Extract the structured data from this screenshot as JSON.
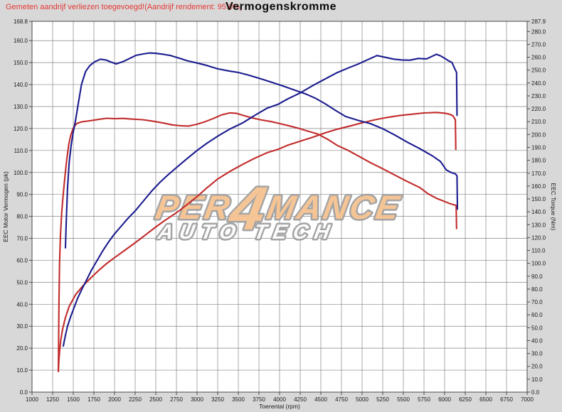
{
  "header": {
    "note": "Gemeten aandrijf verliezen toegevoegd!(Aandrijf rendement: 95.0%)",
    "title": "Vermogenskromme"
  },
  "colors": {
    "background": "#d8d8d8",
    "plot_background": "#ffffff",
    "grid": "#858585",
    "border": "#4a4a4a",
    "blue_series": "#1b1b8e",
    "red_series": "#c22b2b",
    "note_text": "#e53935",
    "axis_text": "#1a1a1a"
  },
  "watermark": {
    "line1": "PER4MANCE",
    "line2": "AUTO TECH",
    "fill": "#f6c18f",
    "line2_fill": "#fcfcfc",
    "outline": "#9e9e9e"
  },
  "chart_data": {
    "type": "line",
    "title": "Vermogenskromme",
    "grid": "on",
    "legend": "none",
    "x_axis": {
      "label": "Toerental (rpm)",
      "min": 1000,
      "max": 7000,
      "ticks": [
        1000,
        1250,
        1500,
        1750,
        2000,
        2250,
        2500,
        2750,
        3000,
        3250,
        3500,
        3750,
        4000,
        4250,
        4500,
        4750,
        5000,
        5250,
        5500,
        5750,
        6000,
        6250,
        6500,
        6750,
        7000
      ]
    },
    "y_left_axis": {
      "label": "EEC Motor Vermogen (pk)",
      "min": 0,
      "max": 168.8,
      "ticks": [
        0,
        10,
        20,
        30,
        40,
        50,
        60,
        70,
        80,
        90,
        100,
        110,
        120,
        130,
        140,
        150,
        160,
        168.8
      ]
    },
    "y_right_axis": {
      "label": "EEC Torque (Nm)",
      "min": 0,
      "max": 287.9,
      "ticks": [
        0,
        10,
        20,
        30,
        40,
        50,
        60,
        70,
        80,
        90,
        100,
        110,
        120,
        130,
        140,
        150,
        160,
        170,
        180,
        190,
        200,
        210,
        220,
        230,
        240,
        250,
        260,
        270,
        280,
        287.9
      ]
    },
    "series": [
      {
        "name": "torque-red",
        "axis": "right",
        "color": "#c22b2b",
        "points": [
          [
            1319,
            16
          ],
          [
            1322,
            40
          ],
          [
            1327,
            70
          ],
          [
            1334,
            100
          ],
          [
            1345,
            122
          ],
          [
            1360,
            140
          ],
          [
            1380,
            155
          ],
          [
            1400,
            168
          ],
          [
            1420,
            180
          ],
          [
            1445,
            192
          ],
          [
            1470,
            199.5
          ],
          [
            1500,
            205
          ],
          [
            1540,
            208.5
          ],
          [
            1600,
            209.8
          ],
          [
            1700,
            210.7
          ],
          [
            1800,
            211.7
          ],
          [
            1905,
            212.6
          ],
          [
            2000,
            212.3
          ],
          [
            2100,
            212.5
          ],
          [
            2200,
            212
          ],
          [
            2340,
            211.5
          ],
          [
            2450,
            210.5
          ],
          [
            2570,
            209.2
          ],
          [
            2700,
            207.5
          ],
          [
            2800,
            206.8
          ],
          [
            2900,
            206.6
          ],
          [
            3000,
            208
          ],
          [
            3100,
            210
          ],
          [
            3200,
            212.5
          ],
          [
            3300,
            215.3
          ],
          [
            3400,
            216.8
          ],
          [
            3480,
            216.4
          ],
          [
            3560,
            214.8
          ],
          [
            3660,
            213
          ],
          [
            3780,
            211.3
          ],
          [
            3900,
            210
          ],
          [
            3980,
            208.8
          ],
          [
            4100,
            207
          ],
          [
            4220,
            205
          ],
          [
            4340,
            202.7
          ],
          [
            4460,
            200.4
          ],
          [
            4580,
            196.4
          ],
          [
            4700,
            191.5
          ],
          [
            4820,
            188
          ],
          [
            4950,
            183.5
          ],
          [
            5100,
            178.2
          ],
          [
            5250,
            173.4
          ],
          [
            5400,
            168.4
          ],
          [
            5550,
            163.4
          ],
          [
            5700,
            158.8
          ],
          [
            5800,
            154
          ],
          [
            5900,
            150.5
          ],
          [
            6000,
            148
          ],
          [
            6070,
            146.2
          ],
          [
            6110,
            145.5
          ],
          [
            6140,
            145
          ],
          [
            6145,
            127
          ]
        ]
      },
      {
        "name": "vermogen-red",
        "axis": "left",
        "color": "#c22b2b",
        "points": [
          [
            1319,
            9.4
          ],
          [
            1325,
            14
          ],
          [
            1335,
            19
          ],
          [
            1350,
            24
          ],
          [
            1370,
            28.5
          ],
          [
            1405,
            34
          ],
          [
            1450,
            39
          ],
          [
            1530,
            44.5
          ],
          [
            1620,
            48.5
          ],
          [
            1730,
            52.6
          ],
          [
            1820,
            55.8
          ],
          [
            1900,
            58.4
          ],
          [
            2000,
            61.2
          ],
          [
            2100,
            63.9
          ],
          [
            2200,
            66.6
          ],
          [
            2300,
            69.4
          ],
          [
            2400,
            72.3
          ],
          [
            2500,
            75.2
          ],
          [
            2600,
            77.9
          ],
          [
            2700,
            80.4
          ],
          [
            2800,
            83
          ],
          [
            2900,
            86
          ],
          [
            3000,
            89
          ],
          [
            3120,
            93
          ],
          [
            3250,
            97
          ],
          [
            3400,
            100.5
          ],
          [
            3550,
            103.6
          ],
          [
            3700,
            106.5
          ],
          [
            3850,
            109
          ],
          [
            3980,
            110.5
          ],
          [
            4100,
            112.4
          ],
          [
            4250,
            114.2
          ],
          [
            4400,
            116
          ],
          [
            4550,
            118
          ],
          [
            4700,
            119.7
          ],
          [
            4840,
            121
          ],
          [
            5000,
            122.6
          ],
          [
            5160,
            124
          ],
          [
            5300,
            125
          ],
          [
            5450,
            125.9
          ],
          [
            5600,
            126.5
          ],
          [
            5750,
            127.1
          ],
          [
            5900,
            127.3
          ],
          [
            6000,
            127
          ],
          [
            6060,
            126.5
          ],
          [
            6100,
            125.8
          ],
          [
            6130,
            124
          ],
          [
            6135,
            110.5
          ]
        ]
      },
      {
        "name": "torque-blue",
        "axis": "right",
        "color": "#1b1b8e",
        "points": [
          [
            1405,
            112
          ],
          [
            1415,
            132
          ],
          [
            1430,
            158
          ],
          [
            1450,
            178
          ],
          [
            1475,
            192
          ],
          [
            1500,
            202
          ],
          [
            1530,
            212
          ],
          [
            1560,
            224
          ],
          [
            1600,
            239
          ],
          [
            1650,
            249
          ],
          [
            1700,
            253.5
          ],
          [
            1760,
            256.5
          ],
          [
            1830,
            258.5
          ],
          [
            1900,
            257.8
          ],
          [
            1960,
            256.2
          ],
          [
            2020,
            254.8
          ],
          [
            2100,
            256.5
          ],
          [
            2180,
            259
          ],
          [
            2260,
            261.5
          ],
          [
            2340,
            262.5
          ],
          [
            2420,
            263.3
          ],
          [
            2500,
            263
          ],
          [
            2600,
            262.2
          ],
          [
            2680,
            261.3
          ],
          [
            2780,
            259.4
          ],
          [
            2880,
            257.3
          ],
          [
            3000,
            255.5
          ],
          [
            3120,
            253.6
          ],
          [
            3250,
            251
          ],
          [
            3380,
            249.4
          ],
          [
            3500,
            248.2
          ],
          [
            3620,
            246.2
          ],
          [
            3760,
            243.5
          ],
          [
            3900,
            240.7
          ],
          [
            4040,
            237.7
          ],
          [
            4180,
            234.5
          ],
          [
            4320,
            231.4
          ],
          [
            4440,
            228
          ],
          [
            4560,
            223.6
          ],
          [
            4680,
            218.6
          ],
          [
            4800,
            214
          ],
          [
            4950,
            211
          ],
          [
            5100,
            208.5
          ],
          [
            5250,
            204.5
          ],
          [
            5400,
            199.5
          ],
          [
            5550,
            194
          ],
          [
            5700,
            189
          ],
          [
            5850,
            183.5
          ],
          [
            5950,
            179
          ],
          [
            6020,
            172.5
          ],
          [
            6080,
            170.5
          ],
          [
            6130,
            169.5
          ],
          [
            6150,
            168
          ],
          [
            6155,
            142
          ]
        ]
      },
      {
        "name": "vermogen-blue",
        "axis": "left",
        "color": "#1b1b8e",
        "points": [
          [
            1379,
            21
          ],
          [
            1400,
            25
          ],
          [
            1430,
            30
          ],
          [
            1470,
            34.5
          ],
          [
            1510,
            38.5
          ],
          [
            1550,
            42.5
          ],
          [
            1600,
            46.5
          ],
          [
            1660,
            51
          ],
          [
            1720,
            55.5
          ],
          [
            1790,
            60
          ],
          [
            1860,
            64.5
          ],
          [
            1930,
            68.5
          ],
          [
            2000,
            72
          ],
          [
            2080,
            75.5
          ],
          [
            2160,
            79
          ],
          [
            2250,
            82.5
          ],
          [
            2350,
            87
          ],
          [
            2450,
            91.5
          ],
          [
            2550,
            95.5
          ],
          [
            2650,
            99
          ],
          [
            2750,
            102.2
          ],
          [
            2870,
            106
          ],
          [
            3000,
            110
          ],
          [
            3120,
            113.3
          ],
          [
            3250,
            116.5
          ],
          [
            3400,
            119.8
          ],
          [
            3550,
            122.5
          ],
          [
            3700,
            126
          ],
          [
            3850,
            129.3
          ],
          [
            3980,
            131
          ],
          [
            4100,
            133.5
          ],
          [
            4250,
            136.2
          ],
          [
            4400,
            139.5
          ],
          [
            4550,
            142.5
          ],
          [
            4700,
            145.5
          ],
          [
            4840,
            147.7
          ],
          [
            4950,
            149.3
          ],
          [
            5060,
            151.2
          ],
          [
            5180,
            153.2
          ],
          [
            5280,
            152.4
          ],
          [
            5380,
            151.6
          ],
          [
            5480,
            151.2
          ],
          [
            5580,
            151.1
          ],
          [
            5680,
            151.9
          ],
          [
            5780,
            151.7
          ],
          [
            5850,
            152.9
          ],
          [
            5900,
            153.8
          ],
          [
            5950,
            153.1
          ],
          [
            6000,
            152
          ],
          [
            6050,
            150.8
          ],
          [
            6090,
            150
          ],
          [
            6120,
            147.5
          ],
          [
            6145,
            145.5
          ],
          [
            6150,
            126
          ]
        ]
      }
    ]
  }
}
